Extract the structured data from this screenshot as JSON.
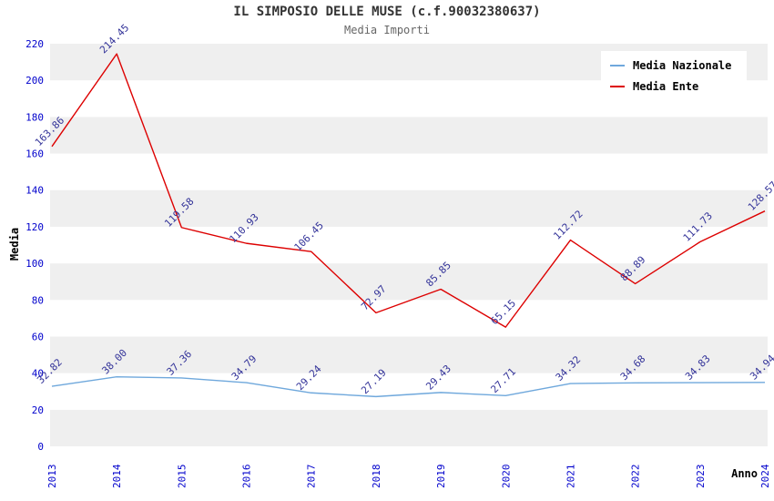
{
  "header": {
    "title": "IL SIMPOSIO DELLE MUSE (c.f.90032380637)",
    "subtitle": "Media Importi"
  },
  "chart_data": {
    "type": "line",
    "title": "IL SIMPOSIO DELLE MUSE (c.f.90032380637)",
    "subtitle": "Media Importi",
    "xlabel": "Anno",
    "ylabel": "Media",
    "categories": [
      "2013",
      "2014",
      "2015",
      "2016",
      "2017",
      "2018",
      "2019",
      "2020",
      "2021",
      "2022",
      "2023",
      "2024"
    ],
    "series": [
      {
        "name": "Media Nazionale",
        "color": "#6fa8dc",
        "values": [
          32.82,
          38.0,
          37.36,
          34.79,
          29.24,
          27.19,
          29.43,
          27.71,
          34.32,
          34.68,
          34.83,
          34.94
        ]
      },
      {
        "name": "Media Ente",
        "color": "#dd0000",
        "values": [
          163.86,
          214.45,
          119.58,
          110.93,
          106.45,
          72.97,
          85.85,
          65.15,
          112.72,
          88.89,
          111.73,
          128.57
        ]
      }
    ],
    "ylim": [
      0,
      220
    ],
    "ytick_step": 20,
    "grid": "horizontal-bands",
    "legend_position": "top-right",
    "colors": {
      "tick_label": "#0000cc",
      "point_label": "#333399",
      "band_shaded": "#efefef",
      "band_plain": "#ffffff",
      "axis_title": "#000000",
      "title": "#333333",
      "subtitle": "#666666",
      "legend_text": "#000000",
      "legend_bg": "#ffffff"
    }
  }
}
